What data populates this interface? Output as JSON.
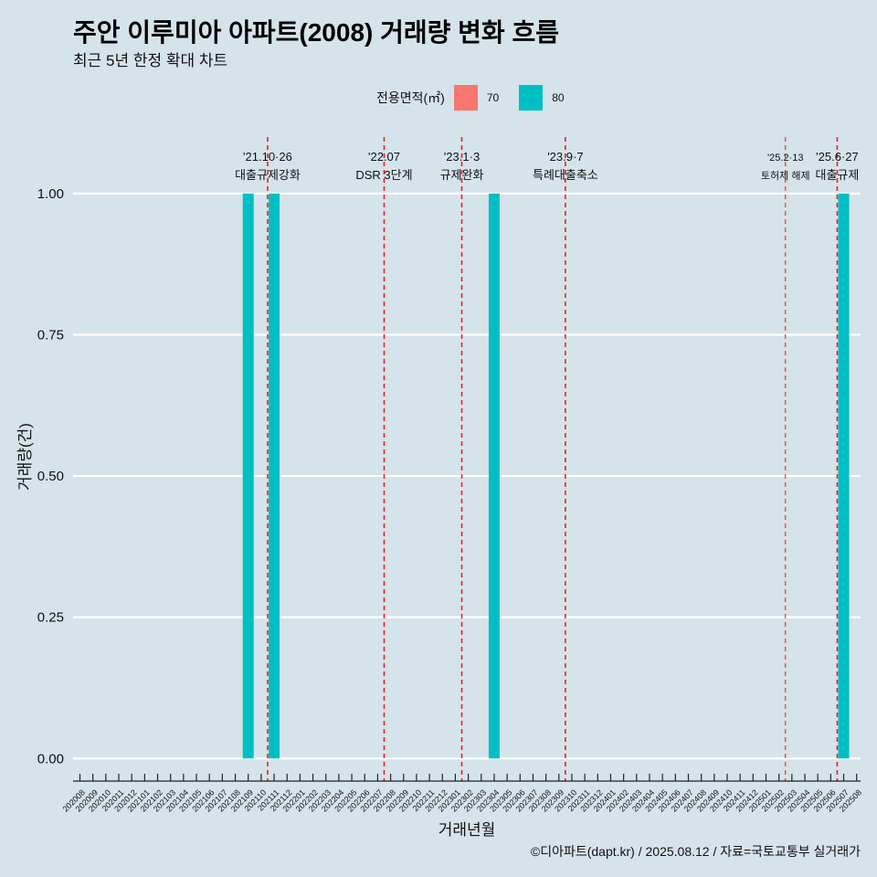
{
  "header": {
    "title": "주안 이루미아 아파트(2008) 거래량 변화 흐름",
    "subtitle": "최근 5년 한정 확대 차트"
  },
  "legend": {
    "title": "전용면적(㎡)",
    "items": [
      {
        "label": "70",
        "color": "#f8766d"
      },
      {
        "label": "80",
        "color": "#00bfc4"
      }
    ]
  },
  "caption": "©디아파트(dapt.kr) / 2025.08.12 / 자료=국토교통부 실거래가",
  "chart_data": {
    "type": "bar",
    "title": "주안 이루미아 아파트(2008) 거래량 변화 흐름",
    "subtitle": "최근 5년 한정 확대 차트",
    "xlabel": "거래년월",
    "ylabel": "거래량(건)",
    "ylim": [
      -0.04,
      1.1
    ],
    "yticks": [
      "0.00",
      "0.25",
      "0.50",
      "0.75",
      "1.00"
    ],
    "categories": [
      "202008",
      "202009",
      "202010",
      "202011",
      "202012",
      "202101",
      "202102",
      "202103",
      "202104",
      "202105",
      "202106",
      "202107",
      "202108",
      "202109",
      "202110",
      "202111",
      "202112",
      "202201",
      "202202",
      "202203",
      "202204",
      "202205",
      "202206",
      "202207",
      "202208",
      "202209",
      "202210",
      "202211",
      "202212",
      "202301",
      "202302",
      "202303",
      "202304",
      "202305",
      "202306",
      "202307",
      "202308",
      "202309",
      "202310",
      "202311",
      "202312",
      "202401",
      "202402",
      "202403",
      "202404",
      "202405",
      "202406",
      "202407",
      "202408",
      "202409",
      "202410",
      "202411",
      "202412",
      "202501",
      "202502",
      "202503",
      "202504",
      "202505",
      "202506",
      "202507",
      "202508"
    ],
    "series": [
      {
        "name": "70",
        "color": "#f8766d",
        "values": [
          0,
          0,
          0,
          0,
          0,
          0,
          0,
          0,
          0,
          0,
          0,
          0,
          0,
          0,
          0,
          0,
          0,
          0,
          0,
          0,
          0,
          0,
          0,
          0,
          0,
          0,
          0,
          0,
          0,
          0,
          0,
          0,
          0,
          0,
          0,
          0,
          0,
          0,
          0,
          0,
          0,
          0,
          0,
          0,
          0,
          0,
          0,
          0,
          0,
          0,
          0,
          0,
          0,
          0,
          0,
          0,
          0,
          0,
          0,
          0,
          0
        ]
      },
      {
        "name": "80",
        "color": "#00bfc4",
        "values": [
          0,
          0,
          0,
          0,
          0,
          0,
          0,
          0,
          0,
          0,
          0,
          0,
          0,
          1,
          0,
          1,
          0,
          0,
          0,
          0,
          0,
          0,
          0,
          0,
          0,
          0,
          0,
          0,
          0,
          0,
          0,
          0,
          1,
          0,
          0,
          0,
          0,
          0,
          0,
          0,
          0,
          0,
          0,
          0,
          0,
          0,
          0,
          0,
          0,
          0,
          0,
          0,
          0,
          0,
          0,
          0,
          0,
          0,
          0,
          1,
          0
        ]
      }
    ],
    "grid": true,
    "legend_position": "top",
    "annotations": [
      {
        "x": 14.5,
        "date": "'21.10·26",
        "text": "대출규제강화"
      },
      {
        "x": 23.5,
        "date": "'22.07",
        "text": "DSR 3단계"
      },
      {
        "x": 29.5,
        "date": "'23.1·3",
        "text": "규제완화"
      },
      {
        "x": 37.5,
        "date": "'23.9·7",
        "text": "특례대출축소"
      },
      {
        "x": 54.5,
        "date": "'25.2·13",
        "text": "토허제 해제",
        "small": true
      },
      {
        "x": 58.5,
        "date": "'25.6·27",
        "text": "대출규제"
      }
    ]
  }
}
